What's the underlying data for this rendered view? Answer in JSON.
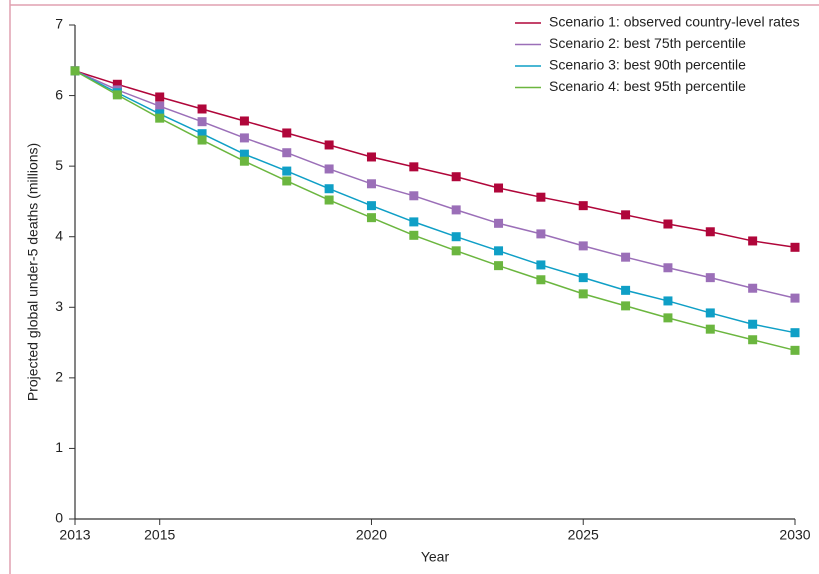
{
  "chart_data": {
    "type": "line",
    "x_label": "Year",
    "y_label": "Projected global under-5 deaths (millions)",
    "x": [
      2013,
      2014,
      2015,
      2016,
      2017,
      2018,
      2019,
      2020,
      2021,
      2022,
      2023,
      2024,
      2025,
      2026,
      2027,
      2028,
      2029,
      2030
    ],
    "xlim": [
      2013,
      2030
    ],
    "xticks": [
      2013,
      2015,
      2020,
      2025,
      2030
    ],
    "ylim": [
      0,
      7
    ],
    "yticks": [
      0,
      1,
      2,
      3,
      4,
      5,
      6,
      7
    ],
    "grid": false,
    "legend": "top-right",
    "series": [
      {
        "name": "Scenario 1: observed country-level rates",
        "color": "#b0063a",
        "values": [
          6.35,
          6.16,
          5.98,
          5.81,
          5.64,
          5.47,
          5.3,
          5.13,
          4.99,
          4.85,
          4.69,
          4.56,
          4.44,
          4.31,
          4.18,
          4.07,
          3.94,
          3.85
        ]
      },
      {
        "name": "Scenario 2: best 75th percentile",
        "color": "#9b6fb8",
        "values": [
          6.35,
          6.08,
          5.85,
          5.63,
          5.4,
          5.19,
          4.96,
          4.75,
          4.58,
          4.38,
          4.19,
          4.04,
          3.87,
          3.71,
          3.56,
          3.42,
          3.27,
          3.13
        ]
      },
      {
        "name": "Scenario 3: best 90th percentile",
        "color": "#0f9fc6",
        "values": [
          6.35,
          6.04,
          5.74,
          5.46,
          5.17,
          4.93,
          4.68,
          4.44,
          4.21,
          4.0,
          3.8,
          3.6,
          3.42,
          3.24,
          3.09,
          2.92,
          2.76,
          2.64
        ]
      },
      {
        "name": "Scenario 4: best 95th percentile",
        "color": "#6bb63f",
        "values": [
          6.35,
          6.01,
          5.68,
          5.37,
          5.07,
          4.79,
          4.52,
          4.27,
          4.02,
          3.8,
          3.59,
          3.39,
          3.19,
          3.02,
          2.85,
          2.69,
          2.54,
          2.39
        ]
      }
    ]
  }
}
